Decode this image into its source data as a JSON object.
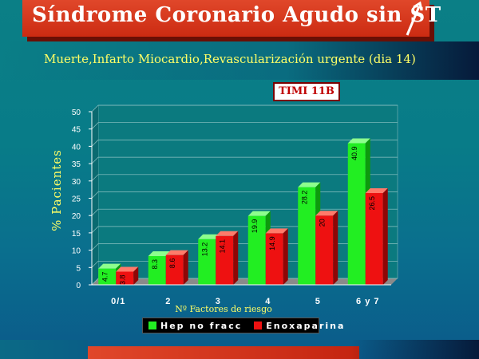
{
  "title": "Síndrome Coronario Agudo sin ST",
  "subtitle": "Muerte,Infarto Miocardio,Revascularización urgente (dia 14)",
  "badge": "TIMI  11B",
  "colors": {
    "hep": "#22ee22",
    "enox": "#ee1111",
    "title_banner": "#d4321a",
    "subtitle_text": "#ffff66"
  },
  "chart_data": {
    "type": "bar",
    "ylabel": "% Pacientes",
    "xlabel": "Nº Factores de riesgo",
    "categories": [
      "0/1",
      "2",
      "3",
      "4",
      "5",
      "6 y 7"
    ],
    "ylim": [
      0,
      50
    ],
    "yticks": [
      0,
      5,
      10,
      15,
      20,
      25,
      30,
      35,
      40,
      45,
      50
    ],
    "grid": true,
    "legend_position": "bottom",
    "series": [
      {
        "name": "Hep no fracc",
        "values": [
          4.7,
          8.3,
          13.2,
          19.9,
          28.2,
          40.9
        ],
        "labels": [
          "4.7",
          "8.3",
          "13.2",
          "19.9",
          "28.2",
          "40.9"
        ]
      },
      {
        "name": "Enoxaparina",
        "values": [
          3.8,
          8.6,
          14.1,
          14.9,
          20,
          26.5
        ],
        "labels": [
          "3.8",
          "8.6",
          "14.1",
          "14.9",
          "20",
          "26.5"
        ]
      }
    ]
  }
}
